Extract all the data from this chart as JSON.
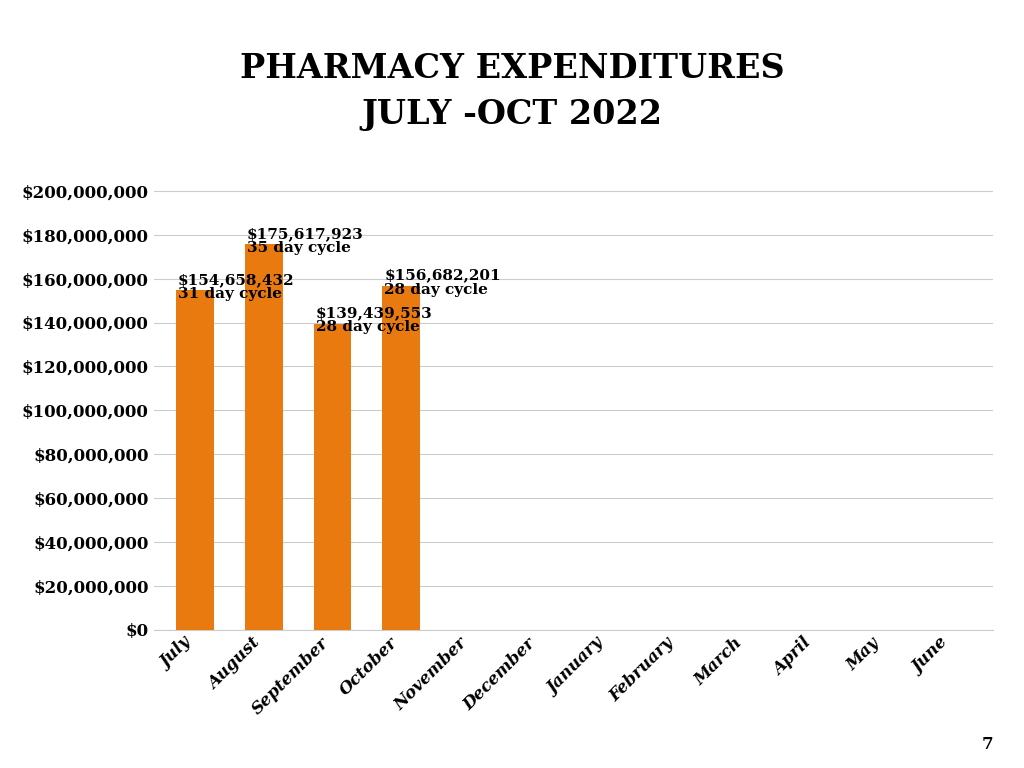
{
  "title": "PHARMACY EXPENDITURES\nJULY -OCT 2022",
  "categories": [
    "July",
    "August",
    "September",
    "October",
    "November",
    "December",
    "January",
    "February",
    "March",
    "April",
    "May",
    "June"
  ],
  "values": [
    154658432,
    175617923,
    139439553,
    156682201,
    0,
    0,
    0,
    0,
    0,
    0,
    0,
    0
  ],
  "bar_color": "#E87A10",
  "annotations": [
    {
      "index": 0,
      "line1": "$154,658,432",
      "line2": "31 day cycle"
    },
    {
      "index": 1,
      "line1": "$175,617,923",
      "line2": "35 day cycle"
    },
    {
      "index": 2,
      "line1": "$139,439,553",
      "line2": "28 day cycle"
    },
    {
      "index": 3,
      "line1": "$156,682,201",
      "line2": "28 day cycle"
    }
  ],
  "ylim": [
    0,
    210000000
  ],
  "yticks": [
    0,
    20000000,
    40000000,
    60000000,
    80000000,
    100000000,
    120000000,
    140000000,
    160000000,
    180000000,
    200000000
  ],
  "ytick_labels": [
    "$0",
    "$20,000,000",
    "$40,000,000",
    "$60,000,000",
    "$80,000,000",
    "$100,000,000",
    "$120,000,000",
    "$140,000,000",
    "$160,000,000",
    "$180,000,000",
    "$200,000,000"
  ],
  "background_color": "#FFFFFF",
  "grid_color": "#CCCCCC",
  "title_fontsize": 24,
  "tick_fontsize": 12,
  "annotation_fontsize": 11,
  "page_number": "7",
  "bar_width": 0.55
}
